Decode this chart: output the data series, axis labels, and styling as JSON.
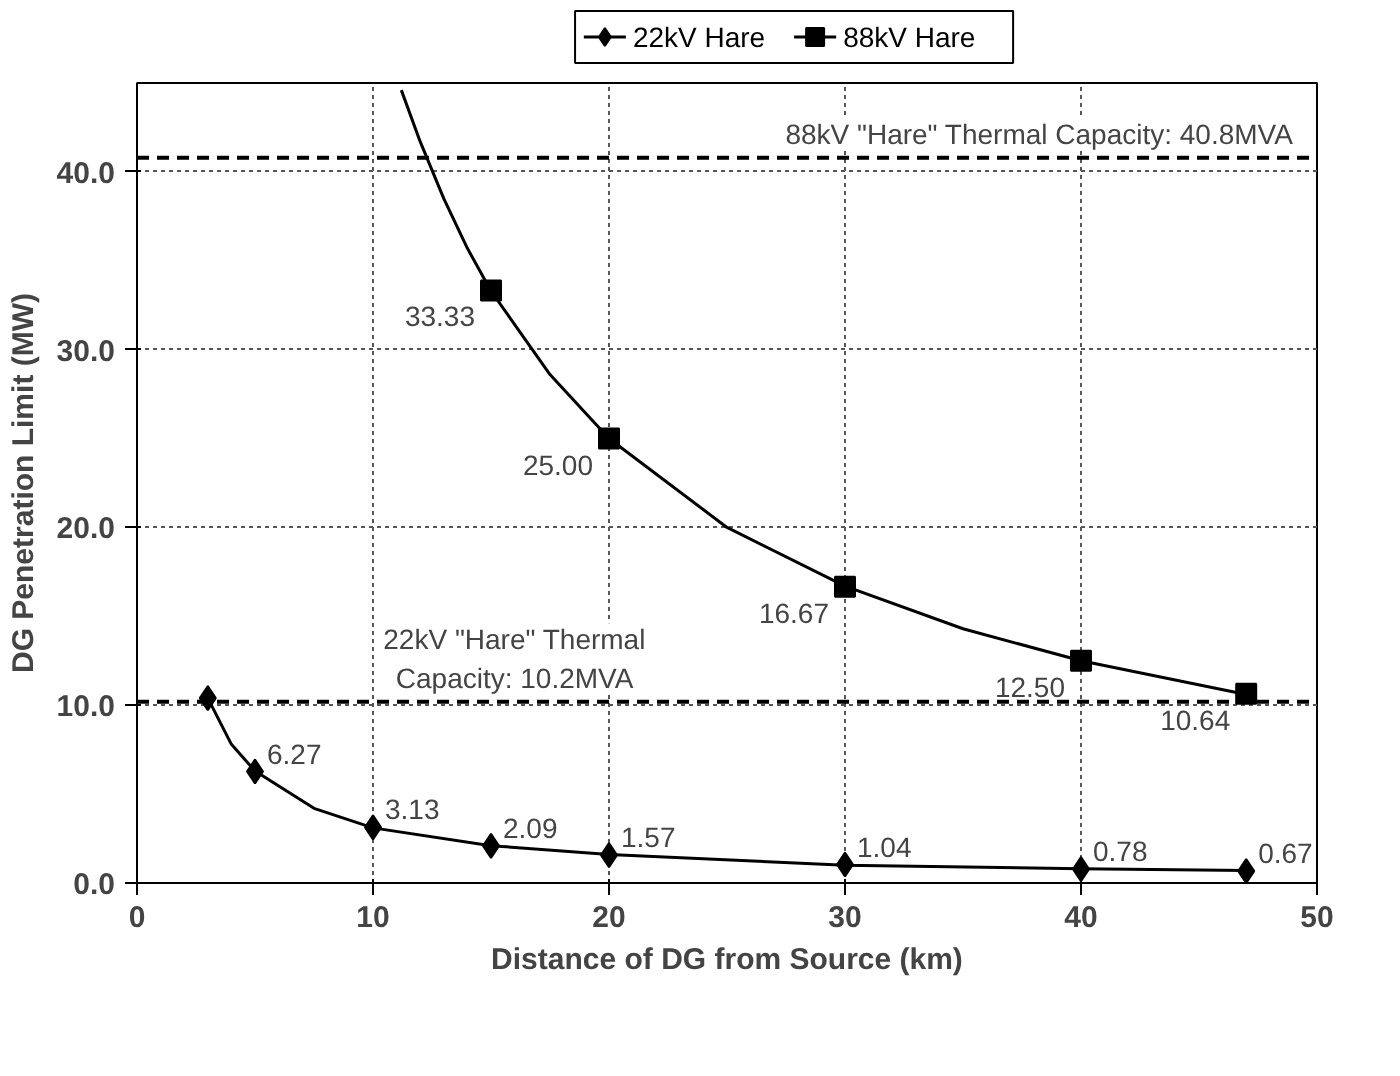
{
  "chart_data": {
    "type": "line",
    "xlabel": "Distance of DG from Source (km)",
    "ylabel": "DG Penetration Limit (MW)",
    "xlim": [
      0,
      50
    ],
    "xticks": [
      0,
      10,
      20,
      30,
      40,
      50
    ],
    "ylim": [
      0,
      45
    ],
    "yticks": [
      {
        "value": 0,
        "label": "0.0"
      },
      {
        "value": 10,
        "label": "10.0"
      },
      {
        "value": 20,
        "label": "20.0"
      },
      {
        "value": 30,
        "label": "30.0"
      },
      {
        "value": 40,
        "label": "40.0"
      }
    ],
    "grid": true,
    "legend": "top",
    "line_style": "solid",
    "series": [
      {
        "marker": "none",
        "color": "#000000",
        "x": [
          3,
          4,
          5,
          7.5,
          10,
          15,
          20,
          30,
          40,
          47
        ],
        "values": [
          10.4,
          7.8,
          6.3,
          4.2,
          3.1,
          2.1,
          1.6,
          1.0,
          0.8,
          0.7
        ]
      },
      {
        "marker": "none",
        "color": "#000000",
        "x": [
          11.2,
          12,
          13,
          14,
          15,
          17.5,
          20,
          25,
          30,
          35,
          40,
          47
        ],
        "values": [
          44.6,
          41.7,
          38.5,
          35.7,
          33.3,
          28.6,
          25.0,
          20.0,
          16.7,
          14.3,
          12.5,
          10.6
        ]
      },
      {
        "type": "scatter",
        "name": "22kV Hare",
        "marker": "diamond",
        "color": "#000000",
        "x": [
          3,
          5,
          10,
          15,
          20,
          30,
          40,
          47
        ],
        "values": [
          10.4,
          6.27,
          3.13,
          2.09,
          1.57,
          1.04,
          0.78,
          0.67
        ],
        "value_labels": [
          null,
          "6.27",
          "3.13",
          "2.09",
          "1.57",
          "1.04",
          "0.78",
          "0.67"
        ]
      },
      {
        "type": "scatter",
        "name": "88kV Hare",
        "marker": "square",
        "color": "#000000",
        "x": [
          15,
          20,
          30,
          40,
          47
        ],
        "values": [
          33.33,
          25.0,
          16.67,
          12.5,
          10.64
        ],
        "value_labels": [
          "33.33",
          "25.00",
          "16.67",
          "12.50",
          "10.64"
        ]
      }
    ],
    "ref_lines": [
      {
        "axis": "y",
        "value": 40.8,
        "label": "88kV \"Hare\" Thermal Capacity: 40.8MVA",
        "line_style": "dashed",
        "color": "#000000"
      },
      {
        "axis": "y",
        "value": 10.2,
        "label": "22kV \"Hare\" Thermal\nCapacity: 10.2MVA",
        "line_style": "dashed",
        "color": "#000000"
      }
    ]
  }
}
